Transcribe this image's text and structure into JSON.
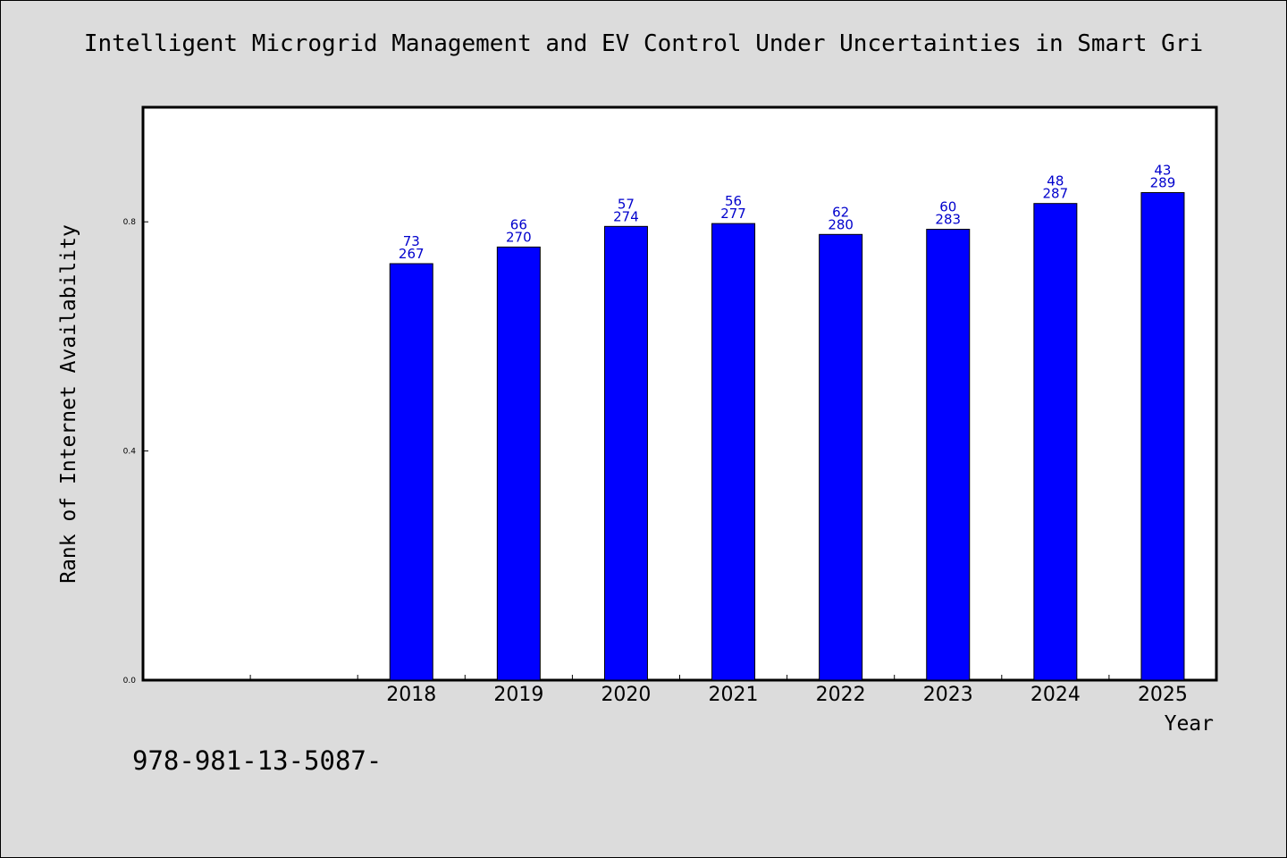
{
  "title": "Intelligent Microgrid Management and EV Control Under Uncertainties in Smart Gri",
  "footer_text": "978-981-13-5087-",
  "colors": {
    "background": "#dcdcdc",
    "plot_background": "#ffffff",
    "bar": "#0000ff",
    "label": "#0000cc"
  },
  "chart_data": {
    "type": "bar",
    "title": "Intelligent Microgrid Management and EV Control Under Uncertainties in Smart Gri",
    "xlabel": "Year",
    "ylabel": "Rank of Internet Availability",
    "ylim": [
      0,
      1.0
    ],
    "yticks": [
      0.0,
      0.4,
      0.8
    ],
    "ytick_labels": [
      "0.0",
      "0.4",
      "0.8"
    ],
    "slots": [
      "",
      "",
      "2018",
      "2019",
      "2020",
      "2021",
      "2022",
      "2023",
      "2024",
      "2025"
    ],
    "categories": [
      "2018",
      "2019",
      "2020",
      "2021",
      "2022",
      "2023",
      "2024",
      "2025"
    ],
    "values": [
      0.727,
      0.756,
      0.792,
      0.797,
      0.778,
      0.787,
      0.832,
      0.851
    ],
    "rank_labels": [
      "73",
      "66",
      "57",
      "56",
      "62",
      "60",
      "48",
      "43"
    ],
    "total_labels": [
      "267",
      "270",
      "274",
      "277",
      "280",
      "283",
      "287",
      "289"
    ],
    "grid": false,
    "legend": "none"
  }
}
